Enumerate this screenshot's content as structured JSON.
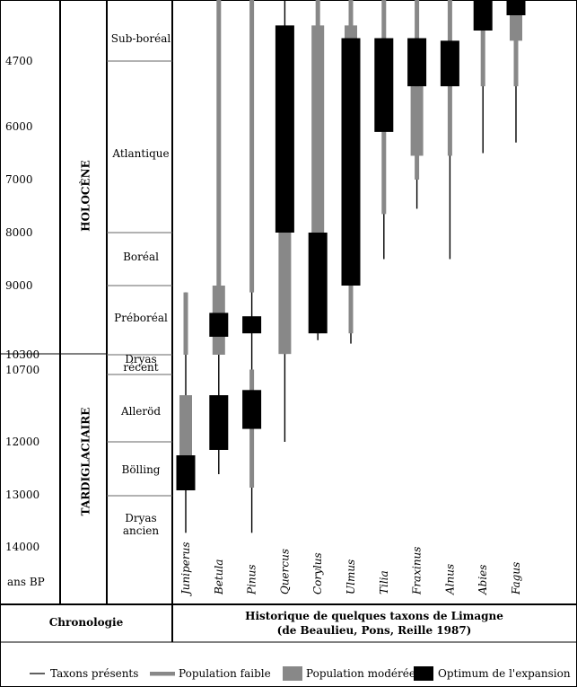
{
  "chart_data": {
    "type": "range-bar",
    "title": "Historique de quelques taxons de Limagne",
    "subtitle": "(de Beaulieu, Pons, Reille 1987)",
    "left_header": "Chronologie",
    "unit_label": "ans BP",
    "eras": [
      {
        "label": "HOLOCÈNE",
        "from": 10000,
        "to": 3500
      },
      {
        "label": "TARDIGLACIAIRE",
        "from": 14300,
        "to": 10000
      }
    ],
    "periods": [
      {
        "label": "Sub-boréal",
        "lines": [
          "Sub-boréal"
        ]
      },
      {
        "label": "Atlantique",
        "lines": [
          "Atlantique"
        ]
      },
      {
        "label": "Boréal",
        "lines": [
          "Boréal"
        ]
      },
      {
        "label": "Préboréal",
        "lines": [
          "Préboréal"
        ]
      },
      {
        "label": "Dryas récent",
        "lines": [
          "Dryas",
          "récent"
        ]
      },
      {
        "label": "Alleröd",
        "lines": [
          "Alleröd"
        ]
      },
      {
        "label": "Bölling",
        "lines": [
          "Bölling"
        ]
      },
      {
        "label": "Dryas ancien",
        "lines": [
          "Dryas",
          "ancien"
        ]
      }
    ],
    "time_ticks": [
      "4700",
      "6000",
      "7000",
      "8000",
      "9000",
      "10300",
      "10700",
      "12000",
      "13000",
      "14000"
    ],
    "taxa": [
      {
        "name": "Juniperus",
        "present": [
          [
            13700,
            9100
          ]
        ],
        "faible": [
          [
            10300,
            9100
          ]
        ],
        "moderee": [
          [
            12500,
            11100
          ]
        ],
        "optimum": [
          [
            12900,
            12250
          ]
        ]
      },
      {
        "name": "Betula",
        "present": [
          [
            12600,
            3500
          ]
        ],
        "faible": [
          [
            9000,
            3500
          ]
        ],
        "moderee": [
          [
            10300,
            9000
          ]
        ],
        "optimum": [
          [
            12150,
            11100
          ],
          [
            9750,
            9400
          ]
        ]
      },
      {
        "name": "Pinus",
        "present": [
          [
            13700,
            3500
          ]
        ],
        "faible": [
          [
            12850,
            10600
          ],
          [
            9100,
            3500
          ]
        ],
        "moderee": [],
        "optimum": [
          [
            11750,
            11000
          ],
          [
            9700,
            9450
          ]
        ]
      },
      {
        "name": "Quercus",
        "present": [
          [
            12000,
            3500
          ]
        ],
        "faible": [
          [
            10050,
            4500
          ]
        ],
        "moderee": [
          [
            10050,
            8000
          ]
        ],
        "optimum": [
          [
            8000,
            4000
          ]
        ]
      },
      {
        "name": "Corylus",
        "present": [
          [
            9800,
            3500
          ]
        ],
        "faible": [
          [
            9700,
            3500
          ]
        ],
        "moderee": [
          [
            8000,
            4000
          ]
        ],
        "optimum": [
          [
            9700,
            8000
          ]
        ]
      },
      {
        "name": "Ulmus",
        "present": [
          [
            9850,
            3500
          ]
        ],
        "faible": [
          [
            9700,
            3500
          ]
        ],
        "moderee": [
          [
            4500,
            4000
          ]
        ],
        "optimum": [
          [
            9000,
            4250
          ]
        ]
      },
      {
        "name": "Tilia",
        "present": [
          [
            8500,
            3500
          ]
        ],
        "faible": [
          [
            7650,
            3500
          ]
        ],
        "moderee": [],
        "optimum": [
          [
            6100,
            4250
          ]
        ]
      },
      {
        "name": "Fraxinus",
        "present": [
          [
            7550,
            3500
          ]
        ],
        "faible": [
          [
            7000,
            3500
          ]
        ],
        "moderee": [
          [
            6550,
            5200
          ]
        ],
        "optimum": [
          [
            5200,
            4250
          ]
        ]
      },
      {
        "name": "Alnus",
        "present": [
          [
            8500,
            3500
          ]
        ],
        "faible": [
          [
            6550,
            3500
          ]
        ],
        "moderee": [],
        "optimum": [
          [
            5200,
            4300
          ]
        ]
      },
      {
        "name": "Abies",
        "present": [
          [
            6500,
            3500
          ]
        ],
        "faible": [
          [
            5200,
            3500
          ]
        ],
        "moderee": [],
        "optimum": [
          [
            4100,
            3500
          ]
        ]
      },
      {
        "name": "Fagus",
        "present": [
          [
            6300,
            3500
          ]
        ],
        "faible": [
          [
            5200,
            3500
          ]
        ],
        "moderee": [
          [
            4300,
            3800
          ]
        ],
        "optimum": [
          [
            3800,
            3500
          ]
        ]
      }
    ],
    "legend": {
      "present": "Taxons présents",
      "faible": "Population faible",
      "moderee": "Population modérée",
      "optimum": "Optimum de l'expansion"
    },
    "colors": {
      "present": "#000000",
      "faible": "#888888",
      "moderee": "#888888",
      "optimum": "#000000"
    }
  }
}
